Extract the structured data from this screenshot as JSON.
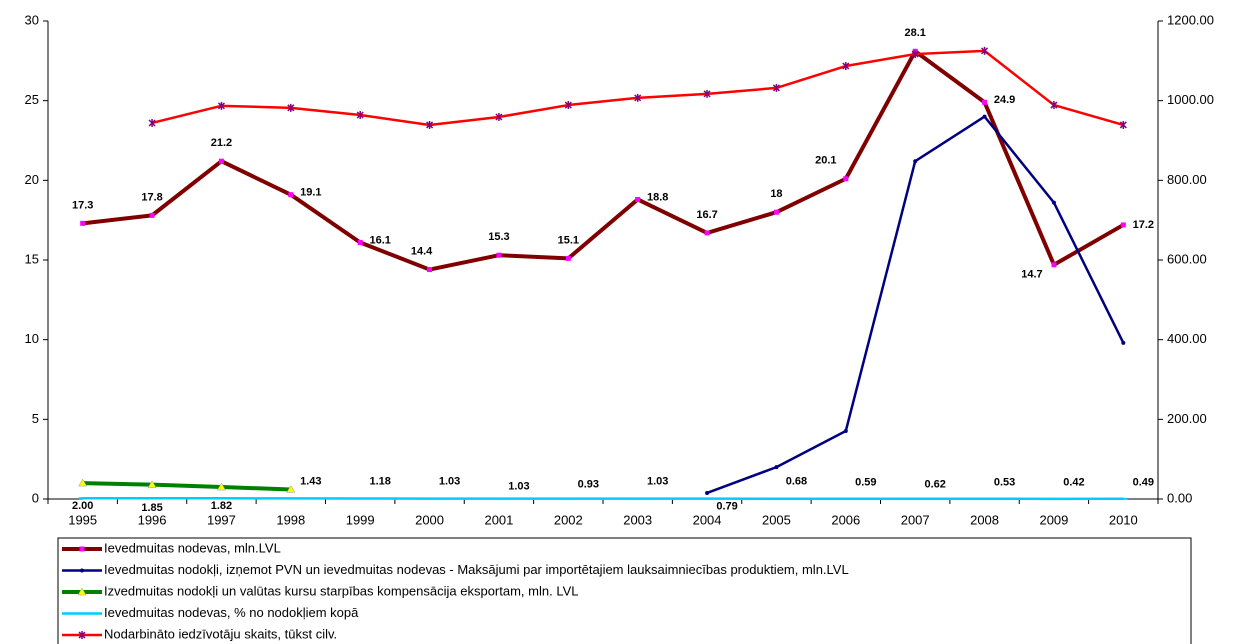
{
  "chart_data": {
    "type": "line",
    "categories": [
      "1995",
      "1996",
      "1997",
      "1998",
      "1999",
      "2000",
      "2001",
      "2002",
      "2003",
      "2004",
      "2005",
      "2006",
      "2007",
      "2008",
      "2009",
      "2010"
    ],
    "ylim": [
      0,
      30
    ],
    "yticks": [
      0,
      5,
      10,
      15,
      20,
      25,
      30
    ],
    "y2lim": [
      0,
      1200
    ],
    "y2ticks": [
      {
        "value": 0,
        "label": "0.00"
      },
      {
        "value": 200,
        "label": "200.00"
      },
      {
        "value": 400,
        "label": "400.00"
      },
      {
        "value": 600,
        "label": "600.00"
      },
      {
        "value": 800,
        "label": "800.00"
      },
      {
        "value": 1000,
        "label": "1000.00"
      },
      {
        "value": 1200,
        "label": "1200.00"
      }
    ],
    "series": [
      {
        "name": "Ievedmuitas nodevas, mln.LVL",
        "color": "#800000",
        "marker": "square",
        "marker_color": "#ff00ff",
        "width": 4,
        "values": [
          17.3,
          17.8,
          21.2,
          19.1,
          16.1,
          14.4,
          15.3,
          15.1,
          18.8,
          16.7,
          18,
          20.1,
          28.1,
          24.9,
          14.7,
          17.2
        ]
      },
      {
        "name": "Ievedmuitas nodokļi, izņemot PVN un ievedmuitas nodevas - Maksājumi par importētajiem lauksaimniecības produktiem, mln.LVL",
        "color": "#000080",
        "marker": "dot",
        "marker_color": "#000080",
        "width": 2.5,
        "values": [
          null,
          null,
          null,
          null,
          null,
          null,
          null,
          null,
          null,
          0.38,
          2.0,
          4.27,
          21.2,
          24.0,
          18.6,
          9.8
        ]
      },
      {
        "name": "Izvedmuitas nodokļi un valūtas kursu starpības kompensācija eksportam, mln. LVL",
        "color": "#008000",
        "marker": "triangle",
        "marker_color": "#ffff00",
        "width": 4,
        "values": [
          1.0,
          0.9,
          0.75,
          0.6,
          null,
          null,
          null,
          null,
          null,
          null,
          null,
          null,
          null,
          null,
          null,
          null
        ]
      },
      {
        "name": "Ievedmuitas nodevas, % no nodokļiem kopā",
        "color": "#00ccff",
        "marker": "dash",
        "marker_color": "#00ccff",
        "width": 2.5,
        "axis": "y2",
        "values": [
          2.0,
          1.85,
          1.82,
          1.43,
          1.18,
          1.03,
          1.03,
          0.93,
          1.03,
          0.79,
          0.68,
          0.59,
          0.62,
          0.53,
          0.42,
          0.49
        ],
        "value_labels": [
          "2.00",
          "1.85",
          "1.82",
          "1.43",
          "1.18",
          "1.03",
          "1.03",
          "0.93",
          "1.03",
          "0.79",
          "0.68",
          "0.59",
          "0.62",
          "0.53",
          "0.42",
          "0.49"
        ]
      },
      {
        "name": "Nodarbināto iedzīvotāju skaits, tūkst cilv.",
        "color": "#ff0000",
        "marker": "star",
        "marker_color": "#800080",
        "width": 2.5,
        "axis": "y2",
        "values": [
          null,
          944,
          987,
          982,
          964,
          939,
          959,
          989,
          1007,
          1017,
          1032,
          1087,
          1117,
          1125,
          989,
          939
        ]
      }
    ]
  }
}
